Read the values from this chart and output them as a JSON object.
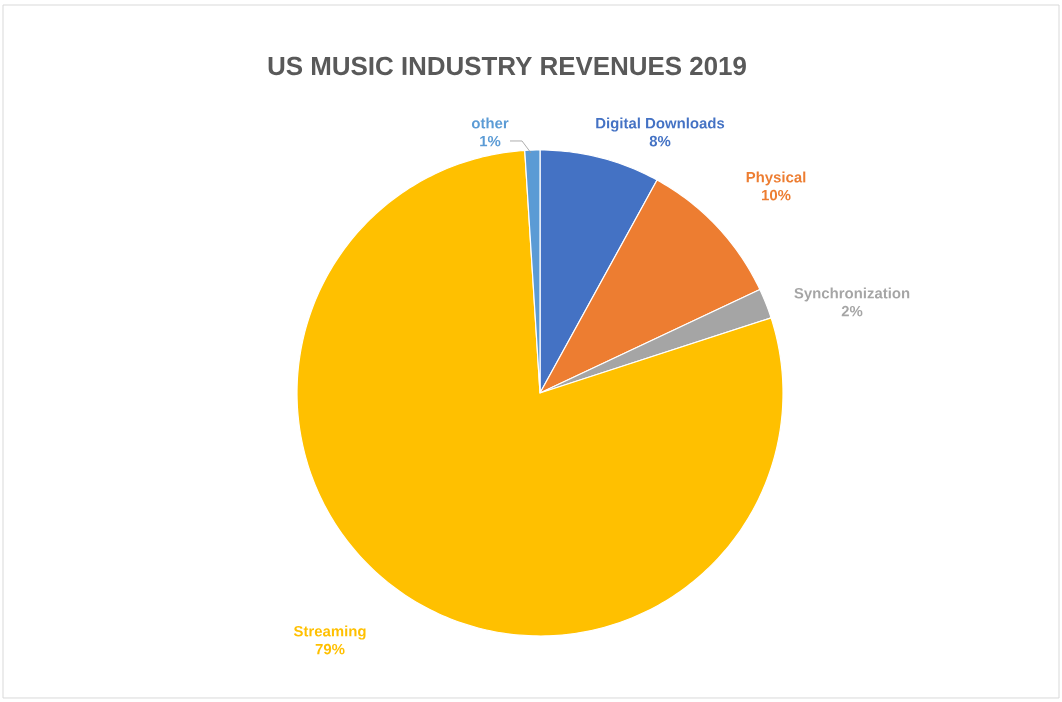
{
  "chart_data": {
    "type": "pie",
    "title": "US MUSIC INDUSTRY REVENUES 2019",
    "categories": [
      "Digital Downloads",
      "Physical",
      "Synchronization",
      "Streaming",
      "other"
    ],
    "values": [
      8,
      10,
      2,
      79,
      1
    ],
    "colors": [
      "#4472c4",
      "#ed7d31",
      "#a5a5a5",
      "#ffc000",
      "#5b9bd5"
    ],
    "value_labels": [
      "8%",
      "10%",
      "2%",
      "79%",
      "1%"
    ]
  }
}
